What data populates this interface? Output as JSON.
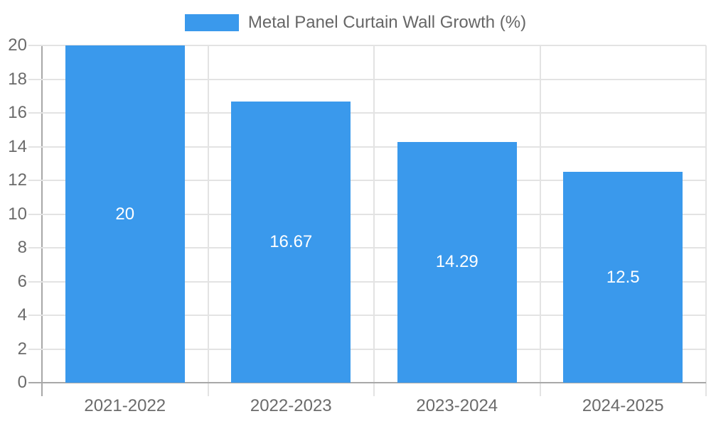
{
  "chart_data": {
    "type": "bar",
    "title": "",
    "legend": {
      "position": "top",
      "label": "Metal Panel Curtain Wall Growth (%)"
    },
    "categories": [
      "2021-2022",
      "2022-2023",
      "2023-2024",
      "2024-2025"
    ],
    "values": [
      20,
      16.67,
      14.29,
      12.5
    ],
    "value_labels": [
      "20",
      "16.67",
      "14.29",
      "12.5"
    ],
    "xlabel": "",
    "ylabel": "",
    "ylim": [
      0,
      20
    ],
    "ytick_step": 2,
    "yticks": [
      0,
      2,
      4,
      6,
      8,
      10,
      12,
      14,
      16,
      18,
      20
    ],
    "grid": true,
    "bar_width_fraction": 0.72,
    "colors": {
      "bar": "#3A99EC",
      "legend_text": "#666666",
      "tick_label": "#6b6b6b",
      "grid_line": "#e3e3e3",
      "axis_line": "#a8a8a8",
      "value_label": "#ffffff",
      "background": "#ffffff"
    }
  }
}
